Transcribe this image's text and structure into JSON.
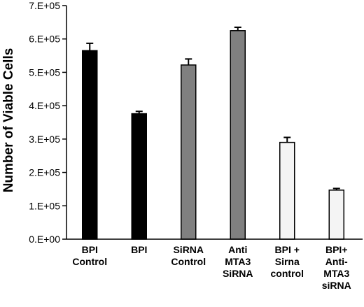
{
  "chart_data": {
    "type": "bar",
    "title": "",
    "xlabel": "",
    "ylabel": "Number of Viable Cells",
    "ylim": [
      0,
      700000
    ],
    "yticks": [
      "0.E+00",
      "1.E+05",
      "2.E+05",
      "3.E+05",
      "4.E+05",
      "5.E+05",
      "6.E+05",
      "7.E+05"
    ],
    "ytick_values": [
      0,
      100000,
      200000,
      300000,
      400000,
      500000,
      600000,
      700000
    ],
    "grid": false,
    "categories": [
      [
        "BPI",
        "Control"
      ],
      [
        "BPI"
      ],
      [
        "SiRNA",
        "Control"
      ],
      [
        "Anti",
        "MTA3",
        "SiRNA"
      ],
      [
        "BPI +",
        "Sirna",
        "control"
      ],
      [
        "BPI+",
        "Anti-",
        "MTA3",
        "siRNA"
      ]
    ],
    "values": [
      565000,
      376000,
      522000,
      625000,
      290000,
      147000
    ],
    "errors": [
      22000,
      7000,
      18000,
      10000,
      15000,
      5000
    ],
    "bar_colors": [
      "#000000",
      "#000000",
      "#808080",
      "#808080",
      "#f4f4f4",
      "#f4f4f4"
    ]
  }
}
